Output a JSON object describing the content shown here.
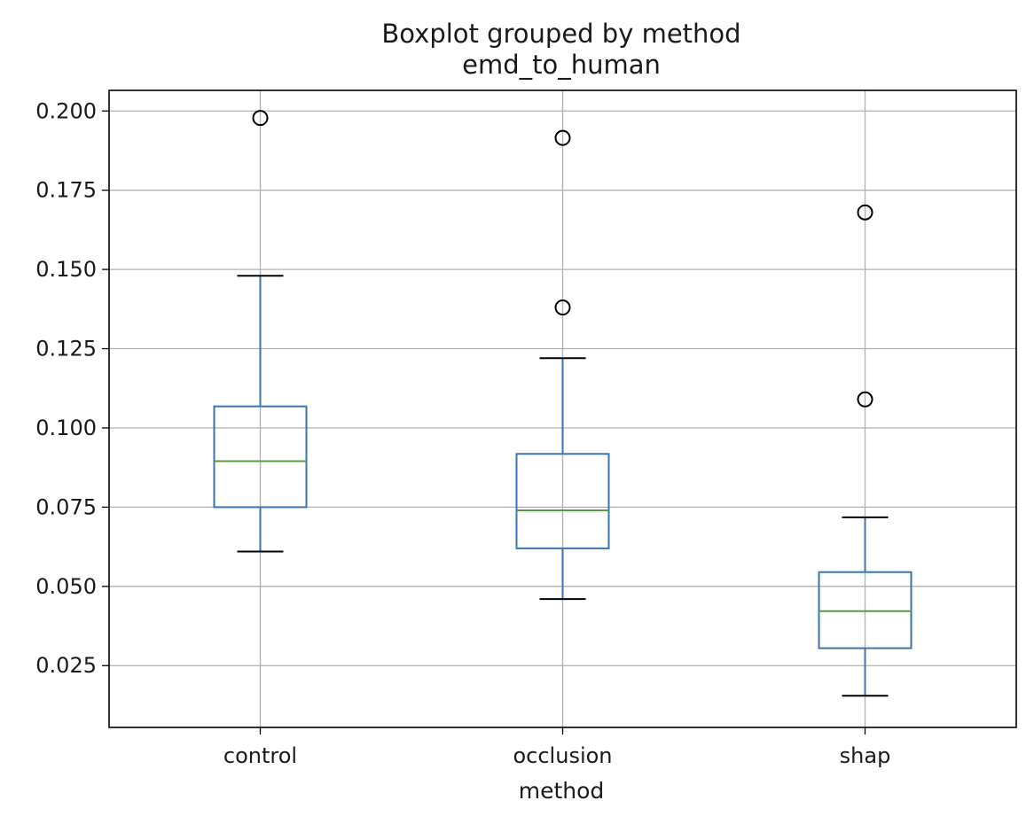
{
  "chart_data": {
    "type": "boxplot",
    "title": "Boxplot grouped by method",
    "subtitle": "emd_to_human",
    "xlabel": "method",
    "ylabel": "",
    "ylim": [
      0.0055,
      0.2065
    ],
    "yticks": [
      0.025,
      0.05,
      0.075,
      0.1,
      0.125,
      0.15,
      0.175,
      0.2
    ],
    "ytick_labels": [
      "0.025",
      "0.050",
      "0.075",
      "0.100",
      "0.125",
      "0.150",
      "0.175",
      "0.200"
    ],
    "grid": true,
    "categories": [
      "control",
      "occlusion",
      "shap"
    ],
    "boxes": [
      {
        "category": "control",
        "whisker_low": 0.061,
        "q1": 0.075,
        "median": 0.0895,
        "q3": 0.1068,
        "whisker_high": 0.148,
        "outliers": [
          0.1978
        ]
      },
      {
        "category": "occlusion",
        "whisker_low": 0.046,
        "q1": 0.062,
        "median": 0.074,
        "q3": 0.0918,
        "whisker_high": 0.122,
        "outliers": [
          0.1915,
          0.138
        ]
      },
      {
        "category": "shap",
        "whisker_low": 0.0155,
        "q1": 0.0305,
        "median": 0.0422,
        "q3": 0.0545,
        "whisker_high": 0.0718,
        "outliers": [
          0.168,
          0.109
        ]
      }
    ],
    "colors": {
      "box": "#3b75af",
      "median": "#519e3e",
      "whisker": "#3b75af",
      "cap": "#000000",
      "outlier": "#000000",
      "grid": "#b0b0b0"
    }
  }
}
